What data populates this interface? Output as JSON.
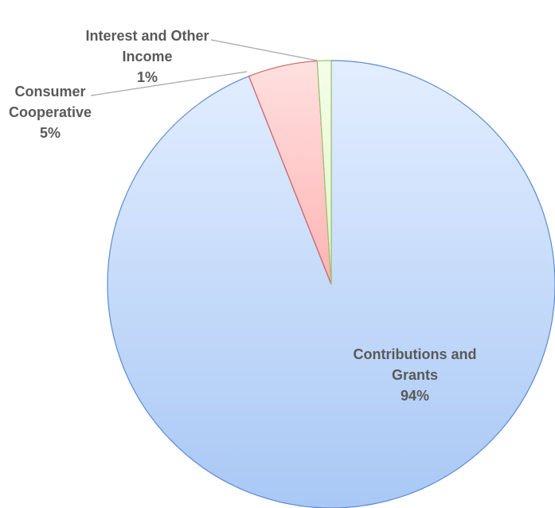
{
  "chart_data": {
    "type": "pie",
    "title": "",
    "slices": [
      {
        "label": "Contributions and Grants",
        "label_lines": [
          "Contributions and",
          "Grants"
        ],
        "value_label": "94%",
        "value": 94,
        "color": "#a9c8f5",
        "color_light": "#e3eeff",
        "stroke": "#5b8bd0"
      },
      {
        "label": "Consumer Cooperative",
        "label_lines": [
          "Consumer",
          "Cooperative"
        ],
        "value_label": "5%",
        "value": 5,
        "color": "#ffb3b3",
        "color_light": "#ffe0e0",
        "stroke": "#d06060"
      },
      {
        "label": "Interest and Other Income",
        "label_lines": [
          "Interest and Other",
          "Income"
        ],
        "value_label": "1%",
        "value": 1,
        "color": "#e2f7c8",
        "color_light": "#f4fde9",
        "stroke": "#9ec46a"
      }
    ],
    "legend": "none"
  }
}
